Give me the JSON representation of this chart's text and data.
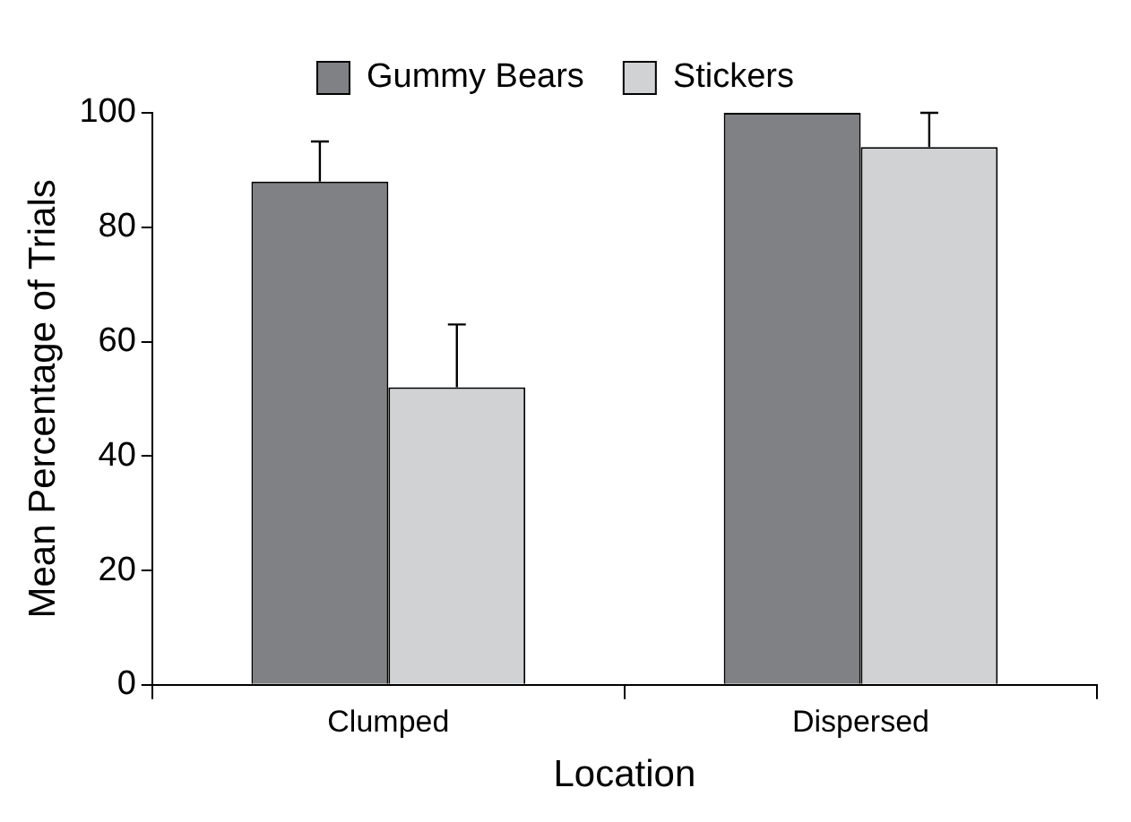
{
  "chart_data": {
    "type": "bar",
    "xlabel": "Location",
    "ylabel": "Mean Percentage of Trials",
    "categories": [
      "Clumped",
      "Dispersed"
    ],
    "series": [
      {
        "name": "Gummy Bears",
        "color": "#808184",
        "values": [
          88,
          100
        ],
        "errors": [
          [
            88,
            95
          ],
          null
        ]
      },
      {
        "name": "Stickers",
        "color": "#d1d2d4",
        "values": [
          52,
          94
        ],
        "errors": [
          [
            52,
            63
          ],
          [
            94,
            100
          ]
        ]
      }
    ],
    "ylim": [
      0,
      100
    ],
    "yticks": [
      0,
      20,
      40,
      60,
      80,
      100
    ],
    "grid": false,
    "legend": "top"
  }
}
